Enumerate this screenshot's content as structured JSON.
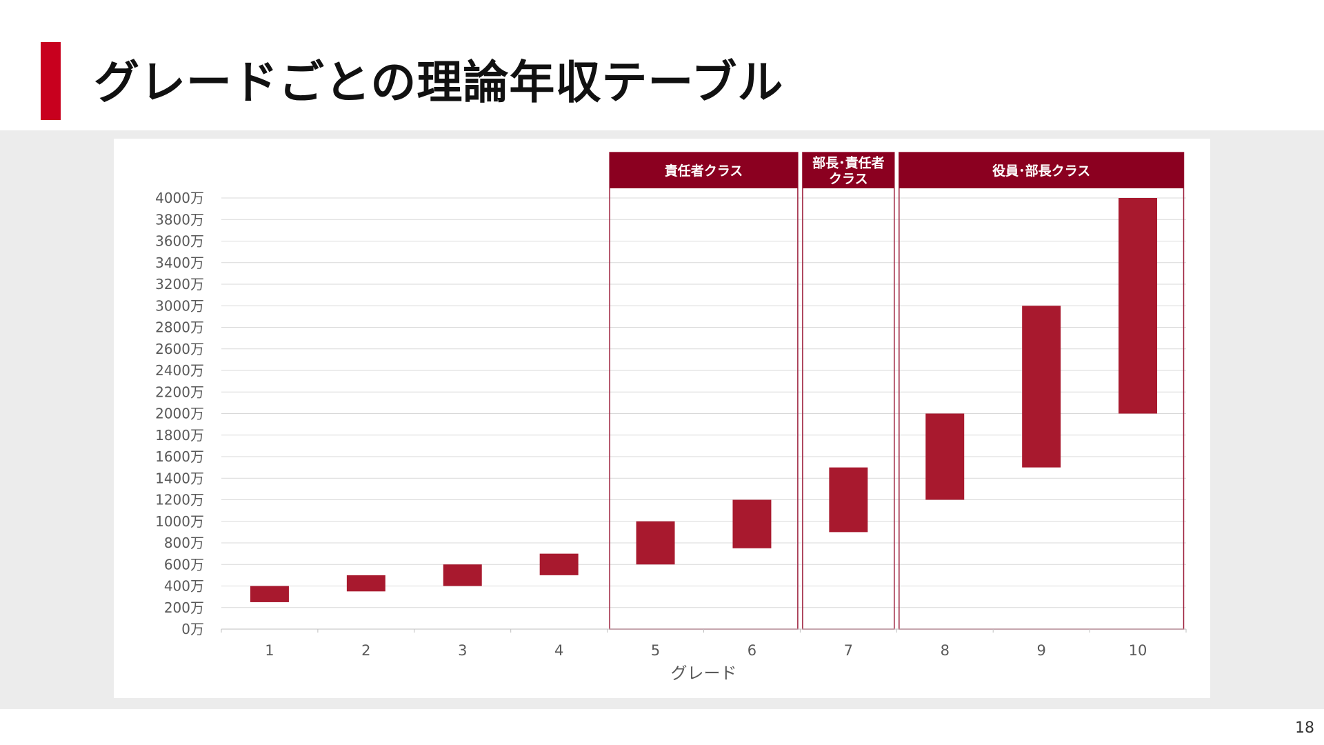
{
  "slide": {
    "title": "グレードごとの理論年収テーブル",
    "page_number": "18"
  },
  "colors": {
    "accent": "#c8001e",
    "bar": "#a8192e",
    "header": "#8b0020",
    "group_border": "#9c1d3a",
    "band": "#ececec"
  },
  "chart_data": {
    "type": "bar",
    "subtype": "floating-range",
    "title": "",
    "xlabel": "グレード",
    "ylabel": "",
    "ylim": [
      0,
      4000
    ],
    "y_step": 200,
    "y_unit_suffix": "万",
    "y_tick_labels": [
      "0万",
      "200万",
      "400万",
      "600万",
      "800万",
      "1000万",
      "1200万",
      "1400万",
      "1600万",
      "1800万",
      "2000万",
      "2200万",
      "2400万",
      "2600万",
      "2800万",
      "3000万",
      "3200万",
      "3400万",
      "3600万",
      "3800万",
      "4000万"
    ],
    "categories": [
      "1",
      "2",
      "3",
      "4",
      "5",
      "6",
      "7",
      "8",
      "9",
      "10"
    ],
    "series": [
      {
        "low": [
          250,
          350,
          400,
          500,
          600,
          750,
          900,
          1200,
          1500,
          2000
        ],
        "high": [
          400,
          500,
          600,
          700,
          1000,
          1200,
          1500,
          2000,
          3000,
          4000
        ]
      }
    ],
    "grid": true,
    "groups": [
      {
        "label_lines": [
          "責任者クラス"
        ],
        "from": "5",
        "to": "6"
      },
      {
        "label_lines": [
          "部長･責任者",
          "クラス"
        ],
        "from": "7",
        "to": "7"
      },
      {
        "label_lines": [
          "役員･部長クラス"
        ],
        "from": "8",
        "to": "10"
      }
    ]
  }
}
